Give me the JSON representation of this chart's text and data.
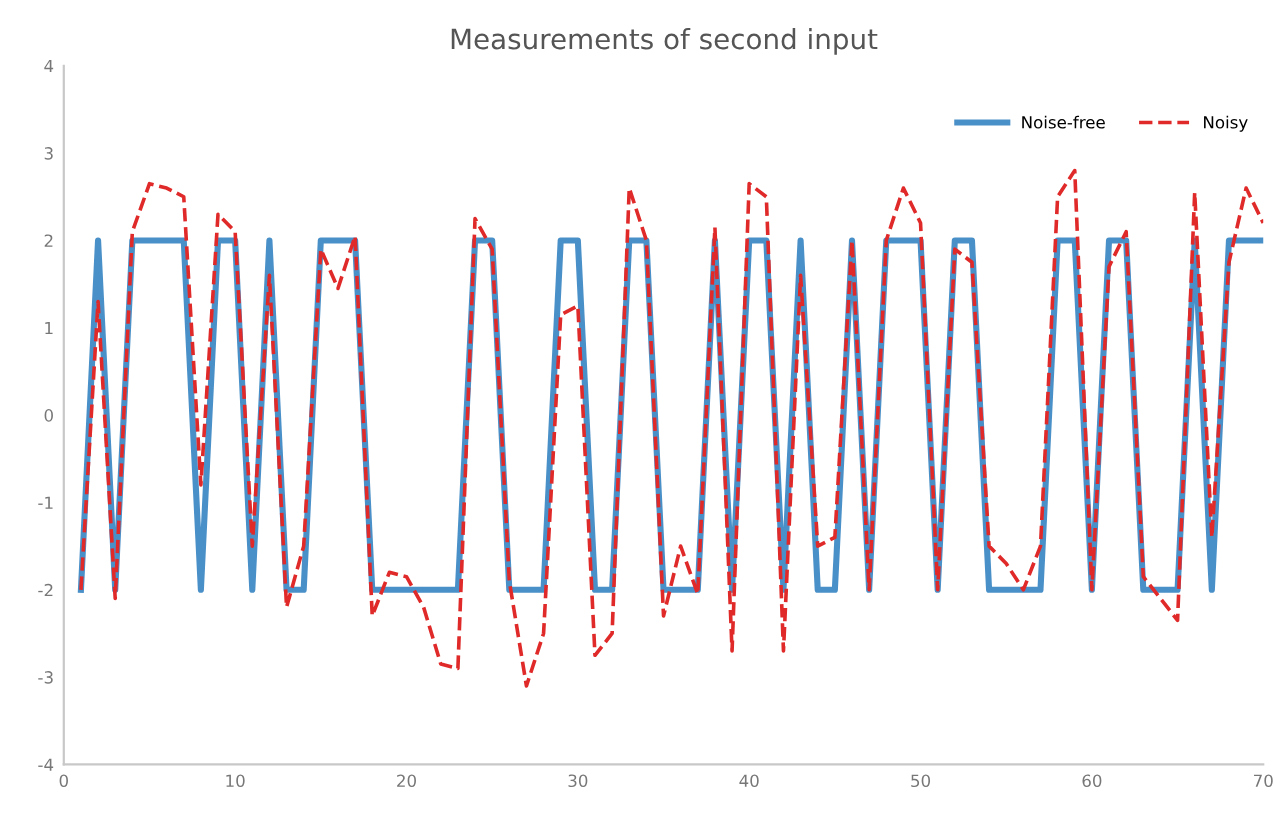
{
  "chart_data": {
    "type": "line",
    "title": "Measurements of second input",
    "x": [
      1,
      2,
      3,
      4,
      5,
      6,
      7,
      8,
      9,
      10,
      11,
      12,
      13,
      14,
      15,
      16,
      17,
      18,
      19,
      20,
      21,
      22,
      23,
      24,
      25,
      26,
      27,
      28,
      29,
      30,
      31,
      32,
      33,
      34,
      35,
      36,
      37,
      38,
      39,
      40,
      41,
      42,
      43,
      44,
      45,
      46,
      47,
      48,
      49,
      50,
      51,
      52,
      53,
      54,
      55,
      56,
      57,
      58,
      59,
      60,
      61,
      62,
      63,
      64,
      65,
      66,
      67,
      68,
      69,
      70
    ],
    "series": [
      {
        "name": "Noise-free",
        "color": "#4a90c8",
        "line_style": "solid",
        "values": [
          -2,
          2,
          -2,
          2,
          2,
          2,
          2,
          -2,
          2,
          2,
          -2,
          2,
          -2,
          -2,
          2,
          2,
          2,
          -2,
          -2,
          -2,
          -2,
          -2,
          -2,
          2,
          2,
          -2,
          -2,
          -2,
          2,
          2,
          -2,
          -2,
          2,
          2,
          -2,
          -2,
          -2,
          2,
          -2,
          2,
          2,
          -2,
          2,
          -2,
          -2,
          2,
          -2,
          2,
          2,
          2,
          -2,
          2,
          2,
          -2,
          -2,
          -2,
          -2,
          2,
          2,
          -2,
          2,
          2,
          -2,
          -2,
          -2,
          2,
          -2,
          2,
          2,
          2
        ]
      },
      {
        "name": "Noisy",
        "color": "#e02a2a",
        "line_style": "dashed",
        "values": [
          -2,
          1.3,
          -2.1,
          2.1,
          2.65,
          2.6,
          2.5,
          -0.8,
          2.3,
          2.1,
          -1.5,
          1.6,
          -2.2,
          -1.5,
          1.9,
          1.45,
          2.05,
          -2.3,
          -1.8,
          -1.85,
          -2.2,
          -2.85,
          -2.9,
          2.25,
          1.9,
          -1.9,
          -3.1,
          -2.5,
          1.15,
          1.25,
          -2.75,
          -2.5,
          2.6,
          2,
          -2.3,
          -1.5,
          -2.05,
          2.15,
          -2.7,
          2.65,
          2.5,
          -2.7,
          1.6,
          -1.5,
          -1.4,
          2,
          -2,
          2,
          2.6,
          2.2,
          -2,
          1.9,
          1.75,
          -1.5,
          -1.7,
          -2,
          -1.5,
          2.5,
          2.8,
          -2,
          1.7,
          2.1,
          -1.85,
          -2.1,
          -2.35,
          2.55,
          -1.4,
          1.75,
          2.6,
          2.2
        ]
      }
    ],
    "xlim": [
      0,
      70
    ],
    "xticks": [
      0,
      10,
      20,
      30,
      40,
      50,
      60,
      70
    ],
    "ylim": [
      -4,
      4
    ],
    "yticks": [
      -4,
      -3,
      -2,
      -1,
      0,
      1,
      2,
      3,
      4
    ],
    "legend": "top right",
    "grid": false,
    "marker": "none"
  }
}
